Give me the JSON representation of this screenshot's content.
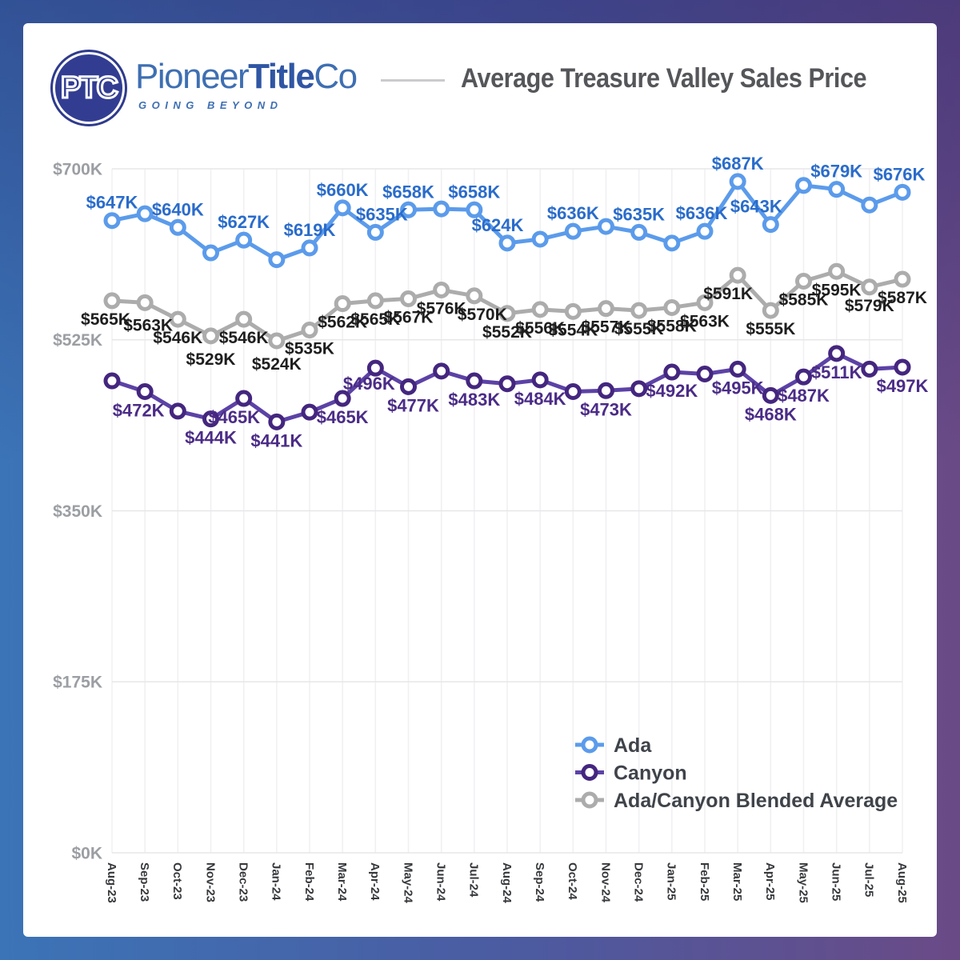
{
  "header": {
    "logo": {
      "monogram": "PTC",
      "brand": {
        "part1": "Pioneer",
        "part2": "Title",
        "part3": "Co"
      },
      "tagline": "GOING BEYOND"
    },
    "title": "Average Treasure Valley Sales Price"
  },
  "colors": {
    "ada_line": "#5B9BEB",
    "ada_label": "#2A6CCB",
    "canyon_line": "#5C42A6",
    "canyon_marker": "#44267F",
    "canyon_label": "#4B2C87",
    "blended_line": "#ACACAC",
    "blended_label": "#1E1E1E",
    "title_text": "#55565A",
    "frame_blue": "#3B74B7",
    "frame_purple": "#6A4A86"
  },
  "chart_data": {
    "type": "line",
    "title": "Average Treasure Valley Sales Price",
    "xlabel": "",
    "ylabel": "",
    "grid": true,
    "legend_position": "inside-bottom-right",
    "ylim": [
      0,
      700
    ],
    "y_ticks": [
      {
        "value": 0,
        "label": "$0K"
      },
      {
        "value": 175,
        "label": "$175K"
      },
      {
        "value": 350,
        "label": "$350K"
      },
      {
        "value": 525,
        "label": "$525K"
      },
      {
        "value": 700,
        "label": "$700K"
      }
    ],
    "x": [
      "Aug-23",
      "Sep-23",
      "Oct-23",
      "Nov-23",
      "Dec-23",
      "Jan-24",
      "Feb-24",
      "Mar-24",
      "Apr-24",
      "May-24",
      "Jun-24",
      "Jul-24",
      "Aug-24",
      "Sep-24",
      "Oct-24",
      "Nov-24",
      "Dec-24",
      "Jan-25",
      "Feb-25",
      "Mar-25",
      "Apr-25",
      "May-25",
      "Jun-25",
      "Jul-25",
      "Aug-25"
    ],
    "series": [
      {
        "id": "ada",
        "name": "Ada",
        "color": "#5B9BEB",
        "marker_color": "#5B9BEB",
        "label_color": "#2A6CCB",
        "label_side": "above",
        "label_size": 22,
        "values": [
          647,
          654,
          640,
          614,
          627,
          607,
          619,
          660,
          635,
          658,
          659,
          658,
          624,
          628,
          636,
          641,
          635,
          624,
          636,
          687,
          643,
          683,
          679,
          663,
          676
        ],
        "point_labels": [
          "$647K",
          null,
          "$640K",
          null,
          "$627K",
          null,
          "$619K",
          "$660K",
          "$635K",
          "$658K",
          null,
          "$658K",
          "$624K",
          null,
          "$636K",
          null,
          "$635K",
          null,
          "$636K",
          "$687K",
          "$643K",
          null,
          "$679K",
          null,
          "$676K"
        ],
        "label_offsets": {
          "8": [
            8,
            0
          ],
          "12": [
            -12,
            0
          ],
          "18": [
            -4,
            0
          ],
          "20": [
            -18,
            0
          ],
          "24": [
            -4,
            0
          ]
        }
      },
      {
        "id": "canyon",
        "name": "Canyon",
        "color": "#5C42A6",
        "marker_color": "#44267F",
        "label_color": "#4B2C87",
        "label_side": "below",
        "label_size": 22,
        "values": [
          483,
          472,
          452,
          444,
          465,
          441,
          451,
          465,
          496,
          477,
          493,
          483,
          480,
          484,
          472,
          473,
          475,
          492,
          490,
          495,
          468,
          487,
          511,
          495,
          497
        ],
        "point_labels": [
          null,
          "$472K",
          null,
          "$444K",
          "$465K",
          "$441K",
          null,
          "$465K",
          "$496K",
          "$477K",
          null,
          "$483K",
          null,
          "$484K",
          null,
          "$473K",
          null,
          "$492K",
          null,
          "$495K",
          "$468K",
          "$487K",
          "$511K",
          null,
          "$497K"
        ],
        "label_offsets": {
          "1": [
            -8,
            0
          ],
          "4": [
            -12,
            0
          ],
          "8": [
            -8,
            -4
          ],
          "9": [
            6,
            0
          ]
        }
      },
      {
        "id": "blended",
        "name": "Ada/Canyon Blended Average",
        "color": "#ACACAC",
        "marker_color": "#ACACAC",
        "label_color": "#1E1E1E",
        "label_side": "below",
        "label_size": 21,
        "values": [
          565,
          563,
          546,
          529,
          546,
          524,
          535,
          562,
          565,
          567,
          576,
          570,
          552,
          556,
          554,
          557,
          555,
          558,
          563,
          591,
          555,
          585,
          595,
          579,
          587
        ],
        "point_labels": [
          "$565K",
          "$563K",
          "$546K",
          "$529K",
          "$546K",
          "$524K",
          "$535K",
          "$562K",
          "$565K",
          "$567K",
          "$576K",
          "$570K",
          "$552K",
          "$556K",
          "$554K",
          "$557K",
          "$555K",
          "$558K",
          "$563K",
          "$591K",
          "$555K",
          "$585K",
          "$595K",
          "$579K",
          "$587K"
        ],
        "label_offsets": {
          "0": [
            -8,
            0
          ],
          "1": [
            4,
            5
          ],
          "3": [
            0,
            6
          ],
          "5": [
            0,
            6
          ],
          "11": [
            10,
            0
          ],
          "19": [
            -12,
            0
          ]
        }
      }
    ]
  }
}
